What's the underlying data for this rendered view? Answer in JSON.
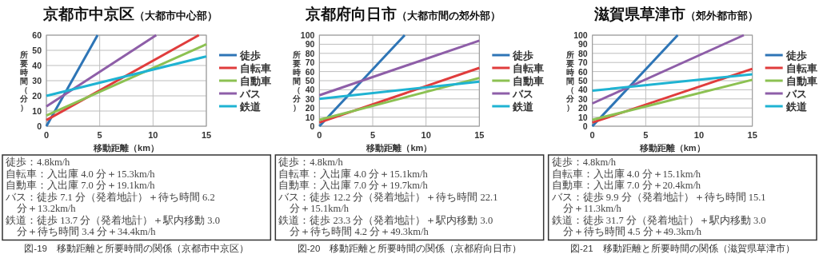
{
  "chart_data": [
    {
      "type": "line",
      "title": "京都市中京区",
      "subtitle": "（大都市中心部）",
      "xlabel": "移動距離（km）",
      "ylabel": "所要時間（分）",
      "xlim": [
        0,
        15
      ],
      "xticks": [
        0,
        5,
        10,
        15
      ],
      "ylim": [
        0,
        60
      ],
      "yticks": [
        0,
        10,
        20,
        30,
        40,
        50,
        60
      ],
      "grid": true,
      "legend": "right",
      "marker": "none",
      "series": [
        {
          "name": "徒歩",
          "color": "#2e75b6",
          "x": [
            0,
            4.8
          ],
          "values": [
            0,
            60
          ]
        },
        {
          "name": "自転車",
          "color": "#e03c3c",
          "x": [
            0,
            14.3
          ],
          "values": [
            4,
            60
          ]
        },
        {
          "name": "自動車",
          "color": "#8cc152",
          "x": [
            0,
            15
          ],
          "values": [
            7,
            54
          ]
        },
        {
          "name": "バス",
          "color": "#8e5ea8",
          "x": [
            0,
            10.3
          ],
          "values": [
            13,
            60
          ]
        },
        {
          "name": "鉄道",
          "color": "#1fb3d2",
          "x": [
            0,
            15
          ],
          "values": [
            20,
            46
          ]
        }
      ],
      "annotations": [
        "徒歩：4.8km/h",
        "自転車：入出庫 4.0 分＋15.3km/h",
        "自動車：入出庫 7.0 分＋19.1km/h",
        "バス：徒歩 7.1 分（発着地計）＋待ち時間 6.2 分＋13.2km/h",
        "鉄道：徒歩 13.7 分（発着地計）＋駅内移動 3.0 分＋待ち時間 3.4 分＋34.4km/h",
        "図-19　移動距離と所要時間の関係（京都市中京区）"
      ]
    },
    {
      "type": "line",
      "title": "京都府向日市",
      "subtitle": "（大都市間の郊外部）",
      "xlabel": "移動距離（km）",
      "ylabel": "所要時間（分）",
      "xlim": [
        0,
        15
      ],
      "xticks": [
        0,
        5,
        10,
        15
      ],
      "ylim": [
        0,
        100
      ],
      "yticks": [
        0,
        10,
        20,
        30,
        40,
        50,
        60,
        70,
        80,
        90,
        100
      ],
      "grid": true,
      "legend": "right",
      "marker": "none",
      "series": [
        {
          "name": "徒歩",
          "color": "#2e75b6",
          "x": [
            0,
            8
          ],
          "values": [
            0,
            100
          ]
        },
        {
          "name": "自転車",
          "color": "#e03c3c",
          "x": [
            0,
            15
          ],
          "values": [
            4,
            64
          ]
        },
        {
          "name": "自動車",
          "color": "#8cc152",
          "x": [
            0,
            15
          ],
          "values": [
            7,
            53
          ]
        },
        {
          "name": "バス",
          "color": "#8e5ea8",
          "x": [
            0,
            15
          ],
          "values": [
            34,
            94
          ]
        },
        {
          "name": "鉄道",
          "color": "#1fb3d2",
          "x": [
            0,
            15
          ],
          "values": [
            30,
            49
          ]
        }
      ],
      "annotations": [
        "徒歩：4.8km/h",
        "自転車：入出庫 4.0 分＋15.1km/h",
        "自動車：入出庫 7.0 分＋19.7km/h",
        "バス：徒歩 12.2 分（発着地計）＋待ち時間 22.1 分＋15.1km/h",
        "鉄道：徒歩 23.3 分（発着地計）＋駅内移動 3.0 分＋待ち時間 4.2 分＋49.3km/h",
        "図-20　移動距離と所要時間の関係（京都府向日市）"
      ]
    },
    {
      "type": "line",
      "title": "滋賀県草津市",
      "subtitle": "（郊外都市部）",
      "xlabel": "移動距離（km）",
      "ylabel": "所要時間（分）",
      "xlim": [
        0,
        15
      ],
      "xticks": [
        0,
        5,
        10,
        15
      ],
      "ylim": [
        0,
        100
      ],
      "yticks": [
        0,
        10,
        20,
        30,
        40,
        50,
        60,
        70,
        80,
        90,
        100
      ],
      "grid": true,
      "legend": "right",
      "marker": "none",
      "series": [
        {
          "name": "徒歩",
          "color": "#2e75b6",
          "x": [
            0,
            8
          ],
          "values": [
            0,
            100
          ]
        },
        {
          "name": "自転車",
          "color": "#e03c3c",
          "x": [
            0,
            15
          ],
          "values": [
            4,
            63
          ]
        },
        {
          "name": "自動車",
          "color": "#8cc152",
          "x": [
            0,
            15
          ],
          "values": [
            7,
            51
          ]
        },
        {
          "name": "バス",
          "color": "#8e5ea8",
          "x": [
            0,
            14.2
          ],
          "values": [
            25,
            100
          ]
        },
        {
          "name": "鉄道",
          "color": "#1fb3d2",
          "x": [
            0,
            15
          ],
          "values": [
            39,
            57
          ]
        }
      ],
      "annotations": [
        "徒歩：4.8km/h",
        "自転車：入出庫 4.0 分＋15.1km/h",
        "自動車：入出庫 7.0 分＋20.4km/h",
        "バス：徒歩 9.9 分（発着地計）＋待ち時間 15.1 分＋11.3km/h",
        "鉄道：徒歩 31.7 分（発着地計）＋駅内移動 3.0 分＋待ち時間 4.5 分＋49.3km/h",
        "図-21　移動距離と所要時間の関係（滋賀県草津市）"
      ]
    }
  ]
}
